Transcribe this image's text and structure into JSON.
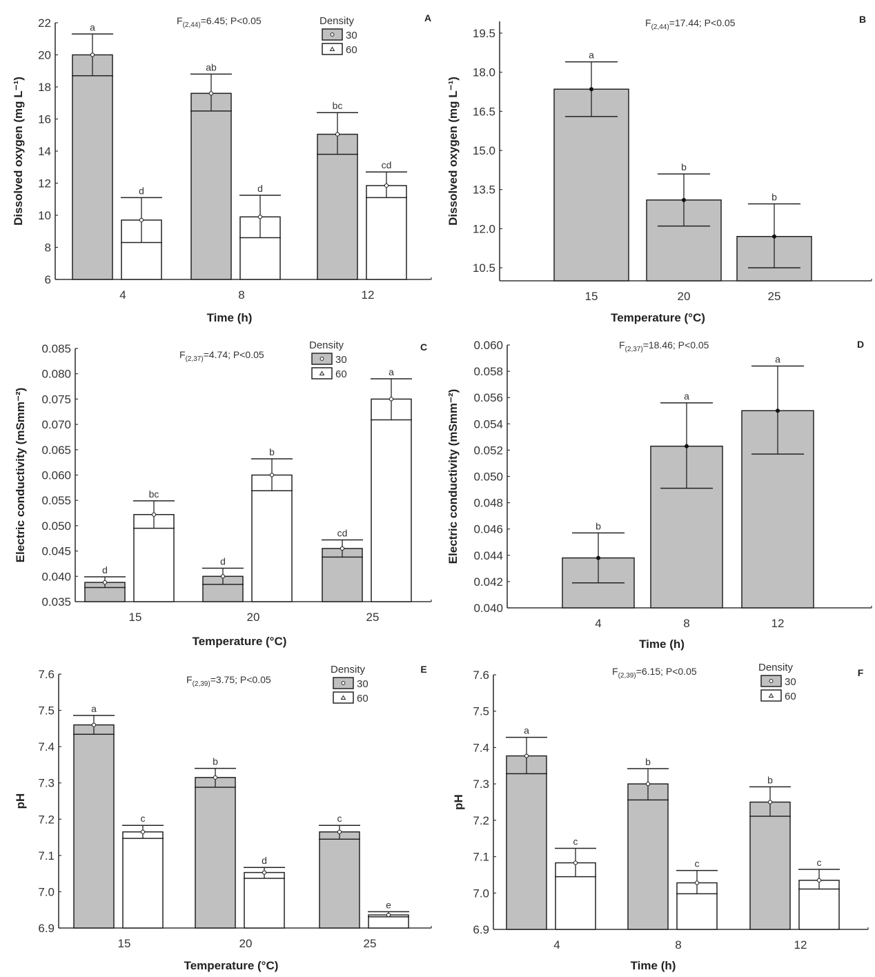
{
  "figure": {
    "colors": {
      "density_30": "#c0c0c0",
      "density_60": "#ffffff",
      "stroke": "#222222"
    }
  },
  "chart_data": [
    {
      "panel": "A",
      "type": "bar",
      "title": "",
      "stat": {
        "prefix": "F",
        "sub": "(2,44)",
        "rest": "=6.45; P<0.05"
      },
      "xlabel": "Time (h)",
      "ylabel": "Dissolved oxygen (mg L⁻¹)",
      "categories": [
        "4",
        "8",
        "12"
      ],
      "ylim": [
        6,
        22
      ],
      "yticks": [
        6,
        8,
        10,
        12,
        14,
        16,
        18,
        20,
        22
      ],
      "ytick_labels": [
        "6",
        "8",
        "10",
        "12",
        "14",
        "16",
        "18",
        "20",
        "22"
      ],
      "legend": {
        "title": "Density",
        "position": "top-right",
        "entries": [
          "30",
          "60"
        ]
      },
      "series": [
        {
          "name": "30",
          "values": [
            20.0,
            17.6,
            15.05
          ],
          "err_low": [
            18.7,
            16.5,
            13.8
          ],
          "err_high": [
            21.3,
            18.8,
            16.4
          ],
          "letters": [
            "a",
            "ab",
            "bc"
          ]
        },
        {
          "name": "60",
          "values": [
            9.7,
            9.9,
            11.85
          ],
          "err_low": [
            8.3,
            8.6,
            11.1
          ],
          "err_high": [
            11.1,
            11.25,
            12.7
          ],
          "letters": [
            "d",
            "d",
            "cd"
          ]
        }
      ],
      "grid": false
    },
    {
      "panel": "B",
      "type": "bar",
      "title": "",
      "stat": {
        "prefix": "F",
        "sub": "(2,44)",
        "rest": "=17.44; P<0.05"
      },
      "xlabel": "Temperature (°C)",
      "ylabel": "Dissolved oxygen (mg L⁻¹)",
      "categories": [
        "15",
        "20",
        "25"
      ],
      "ylim": [
        10.0,
        19.95
      ],
      "yticks": [
        10.5,
        12.0,
        13.5,
        15.0,
        16.5,
        18.0,
        19.5
      ],
      "ytick_labels": [
        "10.5",
        "12.0",
        "13.5",
        "15.0",
        "16.5",
        "18.0",
        "19.5"
      ],
      "legend": null,
      "series": [
        {
          "name": "mean",
          "values": [
            17.35,
            13.1,
            11.7
          ],
          "err_low": [
            16.3,
            12.1,
            10.5
          ],
          "err_high": [
            18.4,
            14.1,
            12.95
          ],
          "letters": [
            "a",
            "b",
            "b"
          ]
        }
      ],
      "grid": false
    },
    {
      "panel": "C",
      "type": "bar",
      "title": "",
      "stat": {
        "prefix": "F",
        "sub": "(2,37)",
        "rest": "=4.74; P<0.05"
      },
      "xlabel": "Temperature (°C)",
      "ylabel": "Electric conductivity (mSmm⁻²)",
      "categories": [
        "15",
        "20",
        "25"
      ],
      "ylim": [
        0.035,
        0.085
      ],
      "yticks": [
        0.035,
        0.04,
        0.045,
        0.05,
        0.055,
        0.06,
        0.065,
        0.07,
        0.075,
        0.08,
        0.085
      ],
      "ytick_labels": [
        "0.035",
        "0.040",
        "0.045",
        "0.050",
        "0.055",
        "0.060",
        "0.065",
        "0.070",
        "0.075",
        "0.080",
        "0.085"
      ],
      "legend": {
        "title": "Density",
        "position": "top-right",
        "entries": [
          "30",
          "60"
        ]
      },
      "series": [
        {
          "name": "30",
          "values": [
            0.0388,
            0.04,
            0.0455
          ],
          "err_low": [
            0.0378,
            0.0384,
            0.0438
          ],
          "err_high": [
            0.0399,
            0.0416,
            0.0472
          ],
          "letters": [
            "d",
            "d",
            "cd"
          ]
        },
        {
          "name": "60",
          "values": [
            0.0522,
            0.06,
            0.075
          ],
          "err_low": [
            0.0495,
            0.0569,
            0.0709
          ],
          "err_high": [
            0.0549,
            0.0632,
            0.079
          ],
          "letters": [
            "bc",
            "b",
            "a"
          ]
        }
      ],
      "grid": false
    },
    {
      "panel": "D",
      "type": "bar",
      "title": "",
      "stat": {
        "prefix": "F",
        "sub": "(2,37)",
        "rest": "=18.46; P<0.05"
      },
      "xlabel": "Time (h)",
      "ylabel": "Electric conductivity (mSmm⁻²)",
      "categories": [
        "4",
        "8",
        "12"
      ],
      "ylim": [
        0.04,
        0.06
      ],
      "yticks": [
        0.04,
        0.042,
        0.044,
        0.046,
        0.048,
        0.05,
        0.052,
        0.054,
        0.056,
        0.058,
        0.06
      ],
      "ytick_labels": [
        "0.040",
        "0.042",
        "0.044",
        "0.046",
        "0.048",
        "0.050",
        "0.052",
        "0.054",
        "0.056",
        "0.058",
        "0.060"
      ],
      "legend": null,
      "series": [
        {
          "name": "mean",
          "values": [
            0.0438,
            0.0523,
            0.055
          ],
          "err_low": [
            0.0419,
            0.0491,
            0.0517
          ],
          "err_high": [
            0.0457,
            0.0556,
            0.0584
          ],
          "letters": [
            "b",
            "a",
            "a"
          ]
        }
      ],
      "grid": false
    },
    {
      "panel": "E",
      "type": "bar",
      "title": "",
      "stat": {
        "prefix": "F",
        "sub": "(2,39)",
        "rest": "=3.75; P<0.05"
      },
      "xlabel": "Temperature (°C)",
      "ylabel": "pH",
      "categories": [
        "15",
        "20",
        "25"
      ],
      "ylim": [
        6.9,
        7.6
      ],
      "yticks": [
        6.9,
        7.0,
        7.1,
        7.2,
        7.3,
        7.4,
        7.5,
        7.6
      ],
      "ytick_labels": [
        "6.9",
        "7.0",
        "7.1",
        "7.2",
        "7.3",
        "7.4",
        "7.5",
        "7.6"
      ],
      "legend": {
        "title": "Density",
        "position": "top-right",
        "entries": [
          "30",
          "60"
        ]
      },
      "series": [
        {
          "name": "30",
          "values": [
            7.46,
            7.315,
            7.165
          ],
          "err_low": [
            7.434,
            7.288,
            7.145
          ],
          "err_high": [
            7.486,
            7.34,
            7.183
          ],
          "letters": [
            "a",
            "b",
            "c"
          ]
        },
        {
          "name": "60",
          "values": [
            7.165,
            7.053,
            6.936
          ],
          "err_low": [
            7.147,
            7.037,
            6.931
          ],
          "err_high": [
            7.183,
            7.067,
            6.945
          ],
          "letters": [
            "c",
            "d",
            "e"
          ]
        }
      ],
      "grid": false
    },
    {
      "panel": "F",
      "type": "bar",
      "title": "",
      "stat": {
        "prefix": "F",
        "sub": "(2,39)",
        "rest": "=6.15; P<0.05"
      },
      "xlabel": "Time (h)",
      "ylabel": "pH",
      "categories": [
        "4",
        "8",
        "12"
      ],
      "ylim": [
        6.9,
        7.6
      ],
      "yticks": [
        6.9,
        7.0,
        7.1,
        7.2,
        7.3,
        7.4,
        7.5,
        7.6
      ],
      "ytick_labels": [
        "6.9",
        "7.0",
        "7.1",
        "7.2",
        "7.3",
        "7.4",
        "7.5",
        "7.6"
      ],
      "legend": {
        "title": "Density",
        "position": "top-right",
        "entries": [
          "30",
          "60"
        ]
      },
      "series": [
        {
          "name": "30",
          "values": [
            7.377,
            7.3,
            7.25
          ],
          "err_low": [
            7.328,
            7.256,
            7.211
          ],
          "err_high": [
            7.428,
            7.342,
            7.292
          ],
          "letters": [
            "a",
            "b",
            "b"
          ]
        },
        {
          "name": "60",
          "values": [
            7.083,
            7.028,
            7.035
          ],
          "err_low": [
            7.045,
            6.998,
            7.011
          ],
          "err_high": [
            7.123,
            7.062,
            7.065
          ],
          "letters": [
            "c",
            "c",
            "c"
          ]
        }
      ],
      "grid": false
    }
  ]
}
